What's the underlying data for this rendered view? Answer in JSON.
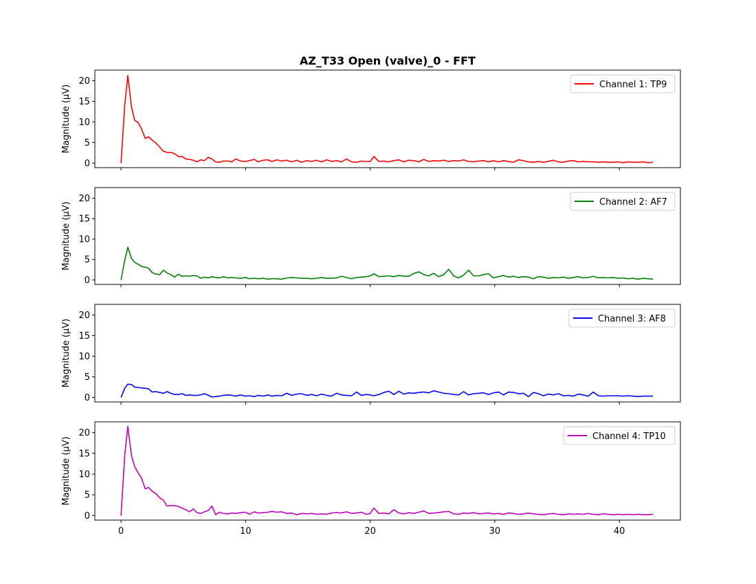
{
  "title": "AZ_T33 Open (valve)_0 - FFT",
  "ylabel": "Magnitude (μV)",
  "xlabel": "",
  "chart_data": {
    "type": "line",
    "title": "AZ_T33 Open (valve)_0 - FFT",
    "xlim": [
      -2.1,
      44.9
    ],
    "ylim": [
      -1.1,
      22.6
    ],
    "xticks": [
      0,
      10,
      20,
      30,
      40
    ],
    "yticks": [
      0,
      5,
      10,
      15,
      20
    ],
    "shared_x": true,
    "legend_placement": "upper right",
    "grid": false,
    "series": [
      {
        "name": "Channel 1: TP9",
        "color": "#ff0000",
        "x": [
          0,
          0.3,
          0.55,
          0.85,
          1.1,
          1.4,
          1.65,
          1.95,
          2.2,
          2.5,
          2.8,
          3.1,
          3.4,
          3.7,
          4.0,
          4.3,
          4.6,
          4.9,
          5.2,
          5.5,
          5.8,
          6.1,
          6.4,
          6.7,
          7.0,
          7.3,
          7.6,
          7.9,
          8.2,
          8.6,
          8.9,
          9.2,
          9.6,
          10.0,
          10.3,
          10.7,
          11.0,
          11.4,
          11.8,
          12.1,
          12.5,
          12.9,
          13.3,
          13.7,
          14.1,
          14.5,
          14.9,
          15.3,
          15.7,
          16.1,
          16.5,
          16.9,
          17.3,
          17.7,
          18.1,
          18.5,
          18.9,
          19.3,
          19.7,
          20.0,
          20.3,
          20.7,
          21.1,
          21.5,
          21.9,
          22.3,
          22.7,
          23.1,
          23.5,
          23.9,
          24.3,
          24.7,
          25.1,
          25.5,
          25.9,
          26.3,
          26.7,
          27.1,
          27.5,
          27.9,
          28.3,
          28.7,
          29.1,
          29.5,
          29.9,
          30.3,
          30.7,
          31.1,
          31.5,
          31.9,
          32.3,
          32.7,
          33.1,
          33.5,
          33.9,
          34.3,
          34.7,
          35.1,
          35.5,
          35.9,
          36.3,
          36.7,
          37.1,
          37.5,
          37.9,
          38.3,
          38.7,
          39.1,
          39.5,
          39.9,
          40.3,
          40.7,
          41.1,
          41.5,
          41.9,
          42.3,
          42.7
        ],
        "values": [
          0,
          14.0,
          21.3,
          13.5,
          10.4,
          9.8,
          8.3,
          6.0,
          6.4,
          5.6,
          4.9,
          3.9,
          2.9,
          2.6,
          2.6,
          2.3,
          1.6,
          1.6,
          1.0,
          0.9,
          0.7,
          0.3,
          0.8,
          0.6,
          1.4,
          1.0,
          0.3,
          0.2,
          0.5,
          0.5,
          0.3,
          1.0,
          0.5,
          0.4,
          0.6,
          0.9,
          0.3,
          0.7,
          0.8,
          0.4,
          0.8,
          0.5,
          0.7,
          0.3,
          0.7,
          0.2,
          0.6,
          0.4,
          0.7,
          0.3,
          0.8,
          0.4,
          0.6,
          0.3,
          1.0,
          0.3,
          0.2,
          0.5,
          0.4,
          0.4,
          1.6,
          0.4,
          0.5,
          0.3,
          0.6,
          0.8,
          0.3,
          0.7,
          0.6,
          0.3,
          0.9,
          0.4,
          0.6,
          0.5,
          0.7,
          0.4,
          0.6,
          0.5,
          0.8,
          0.4,
          0.3,
          0.5,
          0.6,
          0.3,
          0.6,
          0.3,
          0.6,
          0.4,
          0.2,
          0.8,
          0.6,
          0.3,
          0.2,
          0.4,
          0.2,
          0.4,
          0.7,
          0.3,
          0.2,
          0.5,
          0.6,
          0.3,
          0.4,
          0.3,
          0.3,
          0.2,
          0.3,
          0.2,
          0.2,
          0.3,
          0.1,
          0.3,
          0.2,
          0.2,
          0.3,
          0.1,
          0.2
        ]
      },
      {
        "name": "Channel 2: AF7",
        "color": "#008000",
        "x": [
          0,
          0.3,
          0.55,
          0.85,
          1.1,
          1.4,
          1.65,
          1.95,
          2.2,
          2.5,
          2.8,
          3.1,
          3.4,
          3.7,
          4.0,
          4.3,
          4.6,
          4.9,
          5.2,
          5.5,
          5.8,
          6.1,
          6.4,
          6.7,
          7.0,
          7.3,
          7.6,
          7.9,
          8.2,
          8.6,
          8.9,
          9.2,
          9.6,
          10.0,
          10.3,
          10.7,
          11.0,
          11.4,
          11.8,
          12.1,
          12.5,
          12.9,
          13.3,
          13.7,
          14.1,
          14.5,
          14.9,
          15.3,
          15.7,
          16.1,
          16.5,
          16.9,
          17.3,
          17.7,
          18.1,
          18.5,
          18.9,
          19.3,
          19.7,
          20.0,
          20.3,
          20.7,
          21.1,
          21.5,
          21.9,
          22.3,
          22.7,
          23.1,
          23.5,
          23.9,
          24.3,
          24.7,
          25.1,
          25.5,
          25.9,
          26.3,
          26.7,
          27.1,
          27.5,
          27.9,
          28.3,
          28.7,
          29.1,
          29.5,
          29.9,
          30.3,
          30.7,
          31.1,
          31.5,
          31.9,
          32.3,
          32.7,
          33.1,
          33.5,
          33.9,
          34.3,
          34.7,
          35.1,
          35.5,
          35.9,
          36.3,
          36.7,
          37.1,
          37.5,
          37.9,
          38.3,
          38.7,
          39.1,
          39.5,
          39.9,
          40.3,
          40.7,
          41.1,
          41.5,
          41.9,
          42.3,
          42.7
        ],
        "values": [
          0,
          4.8,
          8.0,
          5.2,
          4.3,
          3.8,
          3.3,
          3.1,
          2.9,
          1.8,
          1.4,
          1.3,
          2.4,
          1.7,
          1.3,
          0.7,
          1.4,
          0.9,
          1.0,
          0.9,
          1.1,
          1.0,
          0.4,
          0.7,
          0.5,
          0.8,
          0.6,
          0.5,
          0.8,
          0.5,
          0.6,
          0.5,
          0.4,
          0.6,
          0.3,
          0.4,
          0.3,
          0.4,
          0.2,
          0.3,
          0.3,
          0.2,
          0.5,
          0.6,
          0.5,
          0.4,
          0.4,
          0.3,
          0.4,
          0.6,
          0.4,
          0.4,
          0.5,
          0.9,
          0.6,
          0.3,
          0.6,
          0.7,
          0.8,
          1.0,
          1.5,
          0.8,
          0.9,
          1.0,
          0.8,
          1.1,
          0.9,
          0.9,
          1.6,
          2.0,
          1.3,
          1.0,
          1.6,
          0.8,
          1.3,
          2.6,
          1.0,
          0.5,
          1.2,
          2.4,
          1.0,
          1.0,
          1.3,
          1.5,
          0.5,
          0.8,
          1.1,
          0.7,
          0.9,
          0.6,
          0.8,
          0.7,
          0.3,
          0.8,
          0.7,
          0.4,
          0.6,
          0.5,
          0.7,
          0.4,
          0.6,
          0.8,
          0.5,
          0.6,
          0.9,
          0.5,
          0.6,
          0.5,
          0.6,
          0.4,
          0.5,
          0.3,
          0.4,
          0.2,
          0.4,
          0.3,
          0.2
        ]
      },
      {
        "name": "Channel 3: AF8",
        "color": "#0000ff",
        "x": [
          0,
          0.3,
          0.55,
          0.85,
          1.1,
          1.4,
          1.65,
          1.95,
          2.2,
          2.5,
          2.8,
          3.1,
          3.4,
          3.7,
          4.0,
          4.3,
          4.6,
          4.9,
          5.2,
          5.5,
          5.8,
          6.1,
          6.4,
          6.7,
          7.0,
          7.3,
          7.6,
          7.9,
          8.2,
          8.6,
          8.9,
          9.2,
          9.6,
          10.0,
          10.3,
          10.7,
          11.0,
          11.4,
          11.8,
          12.1,
          12.5,
          12.9,
          13.3,
          13.7,
          14.1,
          14.5,
          14.9,
          15.3,
          15.7,
          16.1,
          16.5,
          16.9,
          17.3,
          17.7,
          18.1,
          18.5,
          18.9,
          19.3,
          19.7,
          20.0,
          20.3,
          20.7,
          21.1,
          21.5,
          21.9,
          22.3,
          22.7,
          23.1,
          23.5,
          23.9,
          24.3,
          24.7,
          25.1,
          25.5,
          25.9,
          26.3,
          26.7,
          27.1,
          27.5,
          27.9,
          28.3,
          28.7,
          29.1,
          29.5,
          29.9,
          30.3,
          30.7,
          31.1,
          31.5,
          31.9,
          32.3,
          32.7,
          33.1,
          33.5,
          33.9,
          34.3,
          34.7,
          35.1,
          35.5,
          35.9,
          36.3,
          36.7,
          37.1,
          37.5,
          37.9,
          38.3,
          38.7,
          39.1,
          39.5,
          39.9,
          40.3,
          40.7,
          41.1,
          41.5,
          41.9,
          42.3,
          42.7
        ],
        "values": [
          0,
          2.2,
          3.2,
          3.1,
          2.5,
          2.4,
          2.3,
          2.2,
          2.1,
          1.3,
          1.4,
          1.2,
          1.0,
          1.4,
          1.0,
          0.7,
          0.7,
          0.9,
          0.5,
          0.6,
          0.5,
          0.5,
          0.6,
          0.9,
          0.5,
          0.1,
          0.2,
          0.3,
          0.5,
          0.6,
          0.5,
          0.3,
          0.6,
          0.3,
          0.4,
          0.2,
          0.5,
          0.3,
          0.6,
          0.3,
          0.5,
          0.4,
          1.0,
          0.5,
          0.8,
          0.9,
          0.5,
          0.7,
          0.4,
          0.8,
          0.5,
          0.3,
          1.0,
          0.6,
          0.5,
          0.4,
          1.3,
          0.5,
          0.7,
          0.6,
          0.4,
          0.7,
          1.2,
          1.5,
          0.7,
          1.5,
          0.8,
          1.1,
          1.0,
          1.2,
          1.3,
          1.1,
          1.6,
          1.3,
          1.0,
          0.9,
          0.7,
          0.6,
          1.4,
          0.6,
          0.9,
          1.0,
          1.1,
          0.7,
          1.1,
          1.3,
          0.6,
          1.3,
          1.2,
          0.9,
          1.0,
          0.2,
          1.2,
          0.9,
          0.4,
          0.8,
          0.6,
          0.9,
          0.4,
          0.5,
          0.3,
          0.8,
          0.6,
          0.3,
          1.3,
          0.4,
          0.3,
          0.4,
          0.4,
          0.4,
          0.3,
          0.4,
          0.3,
          0.2,
          0.3,
          0.3,
          0.3
        ]
      },
      {
        "name": "Channel 4: TP10",
        "color": "#bf00bf",
        "x": [
          0,
          0.3,
          0.55,
          0.85,
          1.1,
          1.4,
          1.65,
          1.95,
          2.2,
          2.5,
          2.8,
          3.1,
          3.4,
          3.7,
          4.0,
          4.3,
          4.6,
          4.9,
          5.2,
          5.5,
          5.8,
          6.1,
          6.4,
          6.7,
          7.0,
          7.3,
          7.6,
          7.9,
          8.2,
          8.6,
          8.9,
          9.2,
          9.6,
          10.0,
          10.3,
          10.7,
          11.0,
          11.4,
          11.8,
          12.1,
          12.5,
          12.9,
          13.3,
          13.7,
          14.1,
          14.5,
          14.9,
          15.3,
          15.7,
          16.1,
          16.5,
          16.9,
          17.3,
          17.7,
          18.1,
          18.5,
          18.9,
          19.3,
          19.7,
          20.0,
          20.3,
          20.7,
          21.1,
          21.5,
          21.9,
          22.3,
          22.7,
          23.1,
          23.5,
          23.9,
          24.3,
          24.7,
          25.1,
          25.5,
          25.9,
          26.3,
          26.7,
          27.1,
          27.5,
          27.9,
          28.3,
          28.7,
          29.1,
          29.5,
          29.9,
          30.3,
          30.7,
          31.1,
          31.5,
          31.9,
          32.3,
          32.7,
          33.1,
          33.5,
          33.9,
          34.3,
          34.7,
          35.1,
          35.5,
          35.9,
          36.3,
          36.7,
          37.1,
          37.5,
          37.9,
          38.3,
          38.7,
          39.1,
          39.5,
          39.9,
          40.3,
          40.7,
          41.1,
          41.5,
          41.9,
          42.3,
          42.7
        ],
        "values": [
          0,
          14.5,
          21.5,
          14.3,
          11.8,
          10.2,
          9.0,
          6.4,
          6.8,
          5.9,
          5.3,
          4.3,
          3.7,
          2.3,
          2.4,
          2.4,
          2.2,
          1.8,
          1.4,
          0.9,
          1.6,
          0.7,
          0.5,
          0.9,
          1.2,
          2.3,
          0.2,
          0.8,
          0.5,
          0.4,
          0.6,
          0.5,
          0.7,
          0.8,
          0.3,
          0.9,
          0.6,
          0.7,
          0.8,
          1.0,
          0.8,
          0.9,
          0.5,
          0.6,
          0.2,
          0.5,
          0.4,
          0.5,
          0.3,
          0.4,
          0.3,
          0.6,
          0.7,
          0.6,
          0.9,
          0.5,
          0.6,
          0.8,
          0.3,
          0.5,
          1.8,
          0.5,
          0.6,
          0.4,
          1.4,
          0.6,
          0.4,
          0.7,
          0.5,
          0.8,
          1.1,
          0.5,
          0.6,
          0.7,
          0.9,
          1.0,
          0.4,
          0.3,
          0.6,
          0.5,
          0.7,
          0.4,
          0.5,
          0.6,
          0.4,
          0.5,
          0.3,
          0.6,
          0.5,
          0.3,
          0.4,
          0.6,
          0.4,
          0.3,
          0.2,
          0.4,
          0.5,
          0.3,
          0.2,
          0.4,
          0.3,
          0.4,
          0.3,
          0.5,
          0.3,
          0.2,
          0.4,
          0.3,
          0.2,
          0.3,
          0.2,
          0.3,
          0.2,
          0.3,
          0.2,
          0.2,
          0.3
        ]
      }
    ]
  }
}
